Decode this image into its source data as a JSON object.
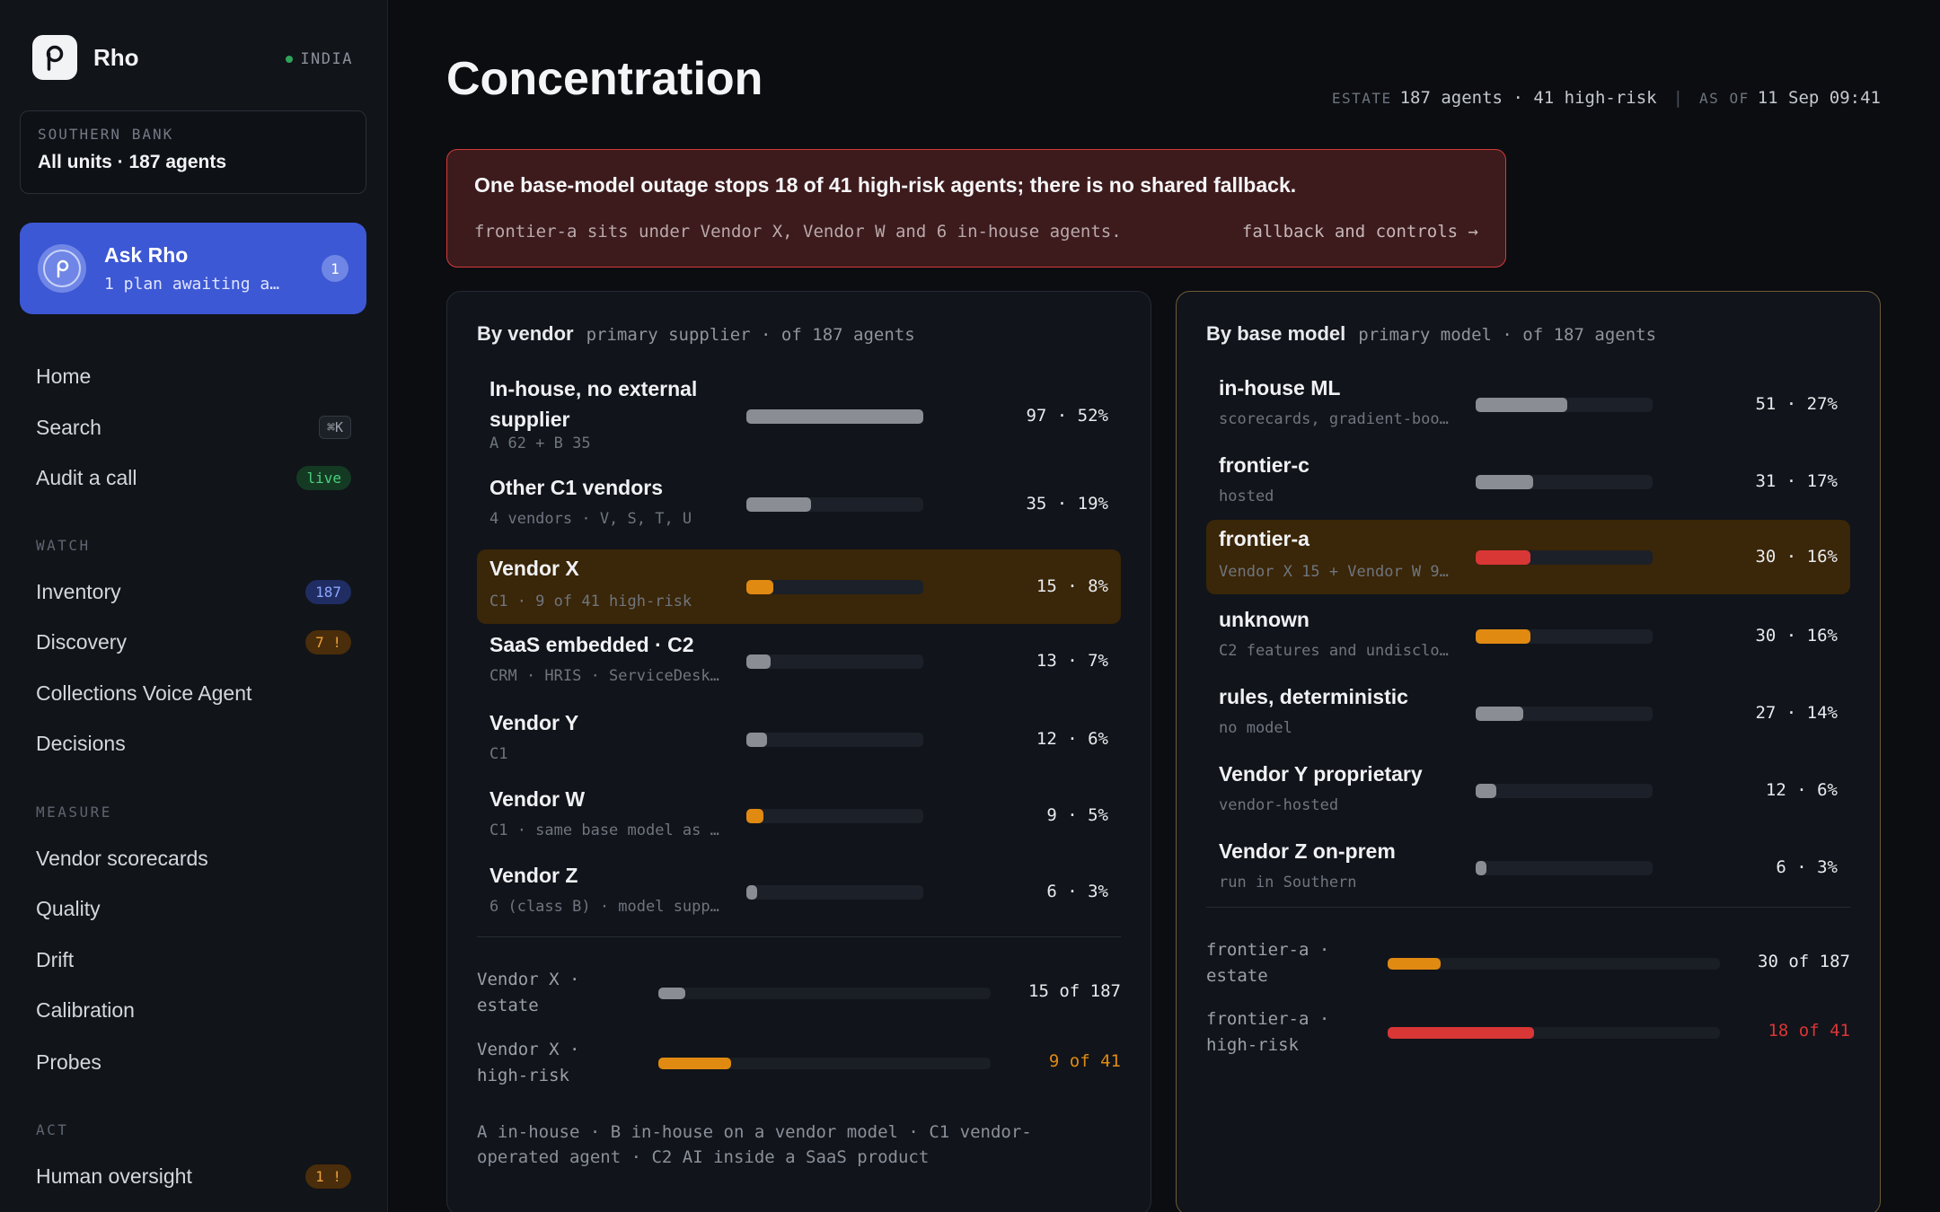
{
  "colors": {
    "accent": "#3d58d4",
    "bar_gray": "#8a8d93",
    "bar_amber": "#e08a12",
    "bar_red": "#d93636",
    "alert_border": "#d43a3a",
    "live_green": "#4ccf7c"
  },
  "sidebar": {
    "brand": "Rho",
    "logo_icon": "rho-logo-icon",
    "region": "INDIA",
    "org": {
      "kicker": "SOUTHERN BANK",
      "name": "All units · 187 agents"
    },
    "ask": {
      "title": "Ask Rho",
      "subtitle": "1 plan awaiting a…",
      "badge": "1"
    },
    "nav_top": [
      {
        "label": "Home"
      },
      {
        "label": "Search",
        "pill": "⌘K"
      },
      {
        "label": "Audit a call",
        "pill": "live"
      }
    ],
    "sections": {
      "watch": "WATCH",
      "measure": "MEASURE",
      "act": "ACT"
    },
    "watch_items": [
      {
        "label": "Inventory",
        "pill": "187"
      },
      {
        "label": "Discovery",
        "pill": "7 !"
      },
      {
        "label": "Collections Voice Agent"
      },
      {
        "label": "Decisions"
      }
    ],
    "measure_items": [
      {
        "label": "Vendor scorecards"
      },
      {
        "label": "Quality"
      },
      {
        "label": "Drift"
      },
      {
        "label": "Calibration"
      },
      {
        "label": "Probes"
      }
    ],
    "act_items": [
      {
        "label": "Human oversight",
        "pill": "1 !"
      }
    ]
  },
  "header": {
    "title": "Concentration",
    "estate_key": "ESTATE",
    "estate_val": "187 agents · 41 high-risk",
    "sep": "|",
    "asof_key": "AS OF",
    "asof_val": "11 Sep 09:41"
  },
  "alert": {
    "title": "One base-model outage stops 18 of 41 high-risk agents; there is no shared fallback.",
    "detail": "frontier-a sits under Vendor X, Vendor W and 6 in-house agents.",
    "link": "fallback and controls →"
  },
  "vendor_panel": {
    "title": "By vendor",
    "subtitle": "primary supplier · of 187 agents",
    "rows": [
      {
        "name": "In-house, no external supplier",
        "sub": "A 62 + B 35",
        "value": "97 · 52%",
        "share": 0.52,
        "color": "gray",
        "highlight": false
      },
      {
        "name": "Other C1 vendors",
        "sub": "4 vendors · V, S, T, U",
        "value": "35 · 19%",
        "share": 0.19,
        "color": "gray",
        "highlight": false
      },
      {
        "name": "Vendor X",
        "sub": "C1 · 9 of 41 high-risk",
        "value": "15 · 8%",
        "share": 0.08,
        "color": "amber",
        "highlight": true
      },
      {
        "name": "SaaS embedded · C2",
        "sub": "CRM · HRIS · ServiceDesk…",
        "value": "13 · 7%",
        "share": 0.07,
        "color": "gray",
        "highlight": false
      },
      {
        "name": "Vendor Y",
        "sub": "C1",
        "value": "12 · 6%",
        "share": 0.06,
        "color": "gray",
        "highlight": false
      },
      {
        "name": "Vendor W",
        "sub": "C1 · same base model as …",
        "value": "9 · 5%",
        "share": 0.05,
        "color": "amber",
        "highlight": false
      },
      {
        "name": "Vendor Z",
        "sub": "6 (class B) · model supp…",
        "value": "6 · 3%",
        "share": 0.03,
        "color": "gray",
        "highlight": false
      }
    ],
    "summary": [
      {
        "label": "Vendor X · estate",
        "value": "15 of 187",
        "share": 0.08,
        "color": "gray",
        "value_color": "#e8eaee"
      },
      {
        "label": "Vendor X · high-risk",
        "value": "9 of 41",
        "share": 0.22,
        "color": "amber",
        "value_color": "#e08a12"
      }
    ],
    "legend": "A in-house · B in-house on a vendor model · C1 vendor-operated agent · C2 AI inside a SaaS product"
  },
  "model_panel": {
    "title": "By base model",
    "subtitle": "primary model · of 187 agents",
    "rows": [
      {
        "name": "in-house ML",
        "sub": "scorecards, gradient-boo…",
        "value": "51 · 27%",
        "share": 0.27,
        "color": "gray",
        "highlight": false
      },
      {
        "name": "frontier-c",
        "sub": "hosted",
        "value": "31 · 17%",
        "share": 0.17,
        "color": "gray",
        "highlight": false
      },
      {
        "name": "frontier-a",
        "sub": "Vendor X 15 + Vendor W 9…",
        "value": "30 · 16%",
        "share": 0.16,
        "color": "red",
        "highlight": true
      },
      {
        "name": "unknown",
        "sub": "C2 features and undisclo…",
        "value": "30 · 16%",
        "share": 0.16,
        "color": "amber",
        "highlight": false
      },
      {
        "name": "rules, deterministic",
        "sub": "no model",
        "value": "27 · 14%",
        "share": 0.14,
        "color": "gray",
        "highlight": false
      },
      {
        "name": "Vendor Y proprietary",
        "sub": "vendor-hosted",
        "value": "12 · 6%",
        "share": 0.06,
        "color": "gray",
        "highlight": false
      },
      {
        "name": "Vendor Z on-prem",
        "sub": "run in Southern",
        "value": "6 · 3%",
        "share": 0.03,
        "color": "gray",
        "highlight": false
      }
    ],
    "summary": [
      {
        "label": "frontier-a · estate",
        "value": "30 of 187",
        "share": 0.16,
        "color": "amber",
        "value_color": "#e8eaee"
      },
      {
        "label": "frontier-a · high-risk",
        "value": "18 of 41",
        "share": 0.44,
        "color": "red",
        "value_color": "#d93636"
      }
    ]
  }
}
